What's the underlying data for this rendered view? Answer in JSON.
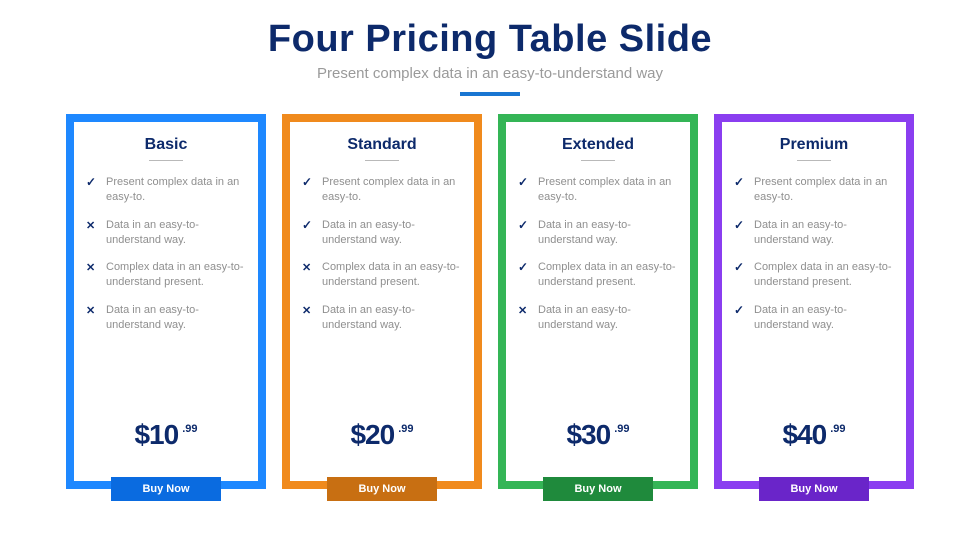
{
  "header": {
    "title": "Four Pricing Table Slide",
    "subtitle": "Present complex data in an easy-to-understand way",
    "title_color": "#0d2a6b",
    "subtitle_color": "#9a9a9a",
    "underline_color": "#1976d2"
  },
  "features_text": [
    "Present complex data in an easy-to.",
    "Data in an easy-to-understand way.",
    "Complex data in an easy-to-understand present.",
    "Data in an easy-to-understand way."
  ],
  "plans": [
    {
      "name": "Basic",
      "border_color": "#1e88ff",
      "button_color": "#0a6be0",
      "price": "$10",
      "cents": ".99",
      "buy_label": "Buy Now",
      "feature_icons": [
        "check",
        "cross",
        "cross",
        "cross"
      ]
    },
    {
      "name": "Standard",
      "border_color": "#f08a1d",
      "button_color": "#c86f12",
      "price": "$20",
      "cents": ".99",
      "buy_label": "Buy Now",
      "feature_icons": [
        "check",
        "check",
        "cross",
        "cross"
      ]
    },
    {
      "name": "Extended",
      "border_color": "#34b556",
      "button_color": "#1f8a3c",
      "price": "$30",
      "cents": ".99",
      "buy_label": "Buy Now",
      "feature_icons": [
        "check",
        "check",
        "check",
        "cross"
      ]
    },
    {
      "name": "Premium",
      "border_color": "#8a3ef0",
      "button_color": "#6a25c9",
      "price": "$40",
      "cents": ".99",
      "buy_label": "Buy Now",
      "feature_icons": [
        "check",
        "check",
        "check",
        "check"
      ]
    }
  ],
  "icon_color": "#0d2a6b",
  "feature_text_color": "#8f8f8f"
}
